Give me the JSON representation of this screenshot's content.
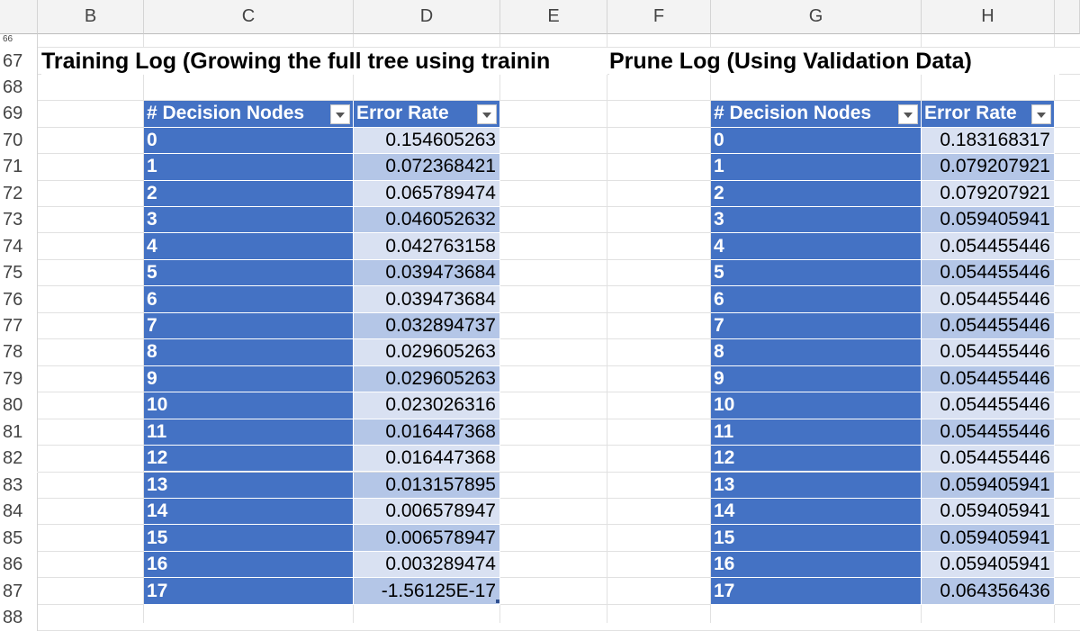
{
  "columns": [
    "B",
    "C",
    "D",
    "E",
    "F",
    "G",
    "H"
  ],
  "rows": [
    "66",
    "67",
    "68",
    "69",
    "70",
    "71",
    "72",
    "73",
    "74",
    "75",
    "76",
    "77",
    "78",
    "79",
    "80",
    "81",
    "82",
    "83",
    "84",
    "85",
    "86",
    "87",
    "88"
  ],
  "training": {
    "title": "Training Log (Growing the full tree using trainin",
    "headers": [
      "# Decision Nodes",
      "Error Rate"
    ],
    "rows": [
      [
        "0",
        "0.154605263"
      ],
      [
        "1",
        "0.072368421"
      ],
      [
        "2",
        "0.065789474"
      ],
      [
        "3",
        "0.046052632"
      ],
      [
        "4",
        "0.042763158"
      ],
      [
        "5",
        "0.039473684"
      ],
      [
        "6",
        "0.039473684"
      ],
      [
        "7",
        "0.032894737"
      ],
      [
        "8",
        "0.029605263"
      ],
      [
        "9",
        "0.029605263"
      ],
      [
        "10",
        "0.023026316"
      ],
      [
        "11",
        "0.016447368"
      ],
      [
        "12",
        "0.016447368"
      ],
      [
        "13",
        "0.013157895"
      ],
      [
        "14",
        "0.006578947"
      ],
      [
        "15",
        "0.006578947"
      ],
      [
        "16",
        "0.003289474"
      ],
      [
        "17",
        "-1.56125E-17"
      ]
    ]
  },
  "prune": {
    "title": "Prune Log (Using Validation Data)",
    "headers": [
      "# Decision Nodes",
      "Error Rate"
    ],
    "rows": [
      [
        "0",
        "0.183168317"
      ],
      [
        "1",
        "0.079207921"
      ],
      [
        "2",
        "0.079207921"
      ],
      [
        "3",
        "0.059405941"
      ],
      [
        "4",
        "0.054455446"
      ],
      [
        "5",
        "0.054455446"
      ],
      [
        "6",
        "0.054455446"
      ],
      [
        "7",
        "0.054455446"
      ],
      [
        "8",
        "0.054455446"
      ],
      [
        "9",
        "0.054455446"
      ],
      [
        "10",
        "0.054455446"
      ],
      [
        "11",
        "0.054455446"
      ],
      [
        "12",
        "0.054455446"
      ],
      [
        "13",
        "0.059405941"
      ],
      [
        "14",
        "0.059405941"
      ],
      [
        "15",
        "0.059405941"
      ],
      [
        "16",
        "0.059405941"
      ],
      [
        "17",
        "0.064356436"
      ]
    ]
  }
}
